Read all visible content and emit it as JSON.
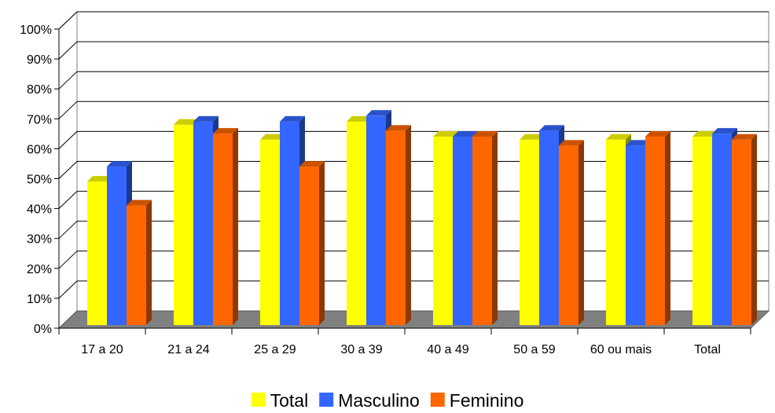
{
  "chart_data": {
    "type": "bar",
    "subtype": "3d-clustered-column",
    "categories": [
      "17 a 20",
      "21 a 24",
      "25 a 29",
      "30 a 39",
      "40 a 49",
      "50 a 59",
      "60 ou mais",
      "Total"
    ],
    "series": [
      {
        "name": "Total",
        "color": "#ffff00",
        "values": [
          48,
          67,
          62,
          68,
          63,
          62,
          62,
          63
        ]
      },
      {
        "name": "Masculino",
        "color": "#3366ff",
        "values": [
          53,
          68,
          68,
          70,
          63,
          65,
          60,
          64
        ]
      },
      {
        "name": "Feminino",
        "color": "#ff6600",
        "values": [
          40,
          64,
          53,
          65,
          63,
          60,
          63,
          62
        ]
      }
    ],
    "y_ticks": [
      "0%",
      "10%",
      "20%",
      "30%",
      "40%",
      "50%",
      "60%",
      "70%",
      "80%",
      "90%",
      "100%"
    ],
    "ylim": [
      0,
      100
    ],
    "y_unit": "%",
    "grid": true,
    "legend_position": "bottom",
    "floor_color": "#808080"
  }
}
